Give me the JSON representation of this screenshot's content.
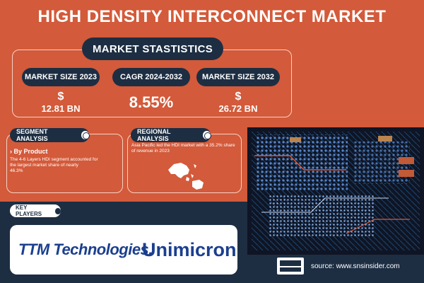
{
  "title": "HIGH DENSITY INTERCONNECT MARKET",
  "stats": {
    "heading": "MARKET STASTISTICS",
    "market_size_2023": {
      "label": "MARKET SIZE 2023",
      "currency": "$",
      "value": "12.81 BN"
    },
    "cagr": {
      "label": "CAGR 2024-2032",
      "value": "8.55%"
    },
    "market_size_2032": {
      "label": "MARKET SIZE 2032",
      "currency": "$",
      "value": "26.72 BN"
    }
  },
  "segment": {
    "title": "SEGMENT ANALYSIS",
    "subtitle": "By Product",
    "text_line1": "The 4-6 Layers HDI segment accounted for",
    "text_line2": "the largest market share of nearly",
    "text_line3": "46.3%"
  },
  "regional": {
    "title": "REGIONAL ANALYSIS",
    "text_line1": "Asia Pacific led the HDI market with a 35.2% share",
    "text_line2": "of revenue in 2023"
  },
  "key_players": {
    "title": "KEY PLAYERS",
    "companies": [
      "TTM Technologies.",
      "Unimicron"
    ]
  },
  "source": "source: www.snsinsider.com",
  "colors": {
    "orange": "#d35a3a",
    "navy": "#1d2e43",
    "ttm_blue": "#1b3f8f"
  }
}
